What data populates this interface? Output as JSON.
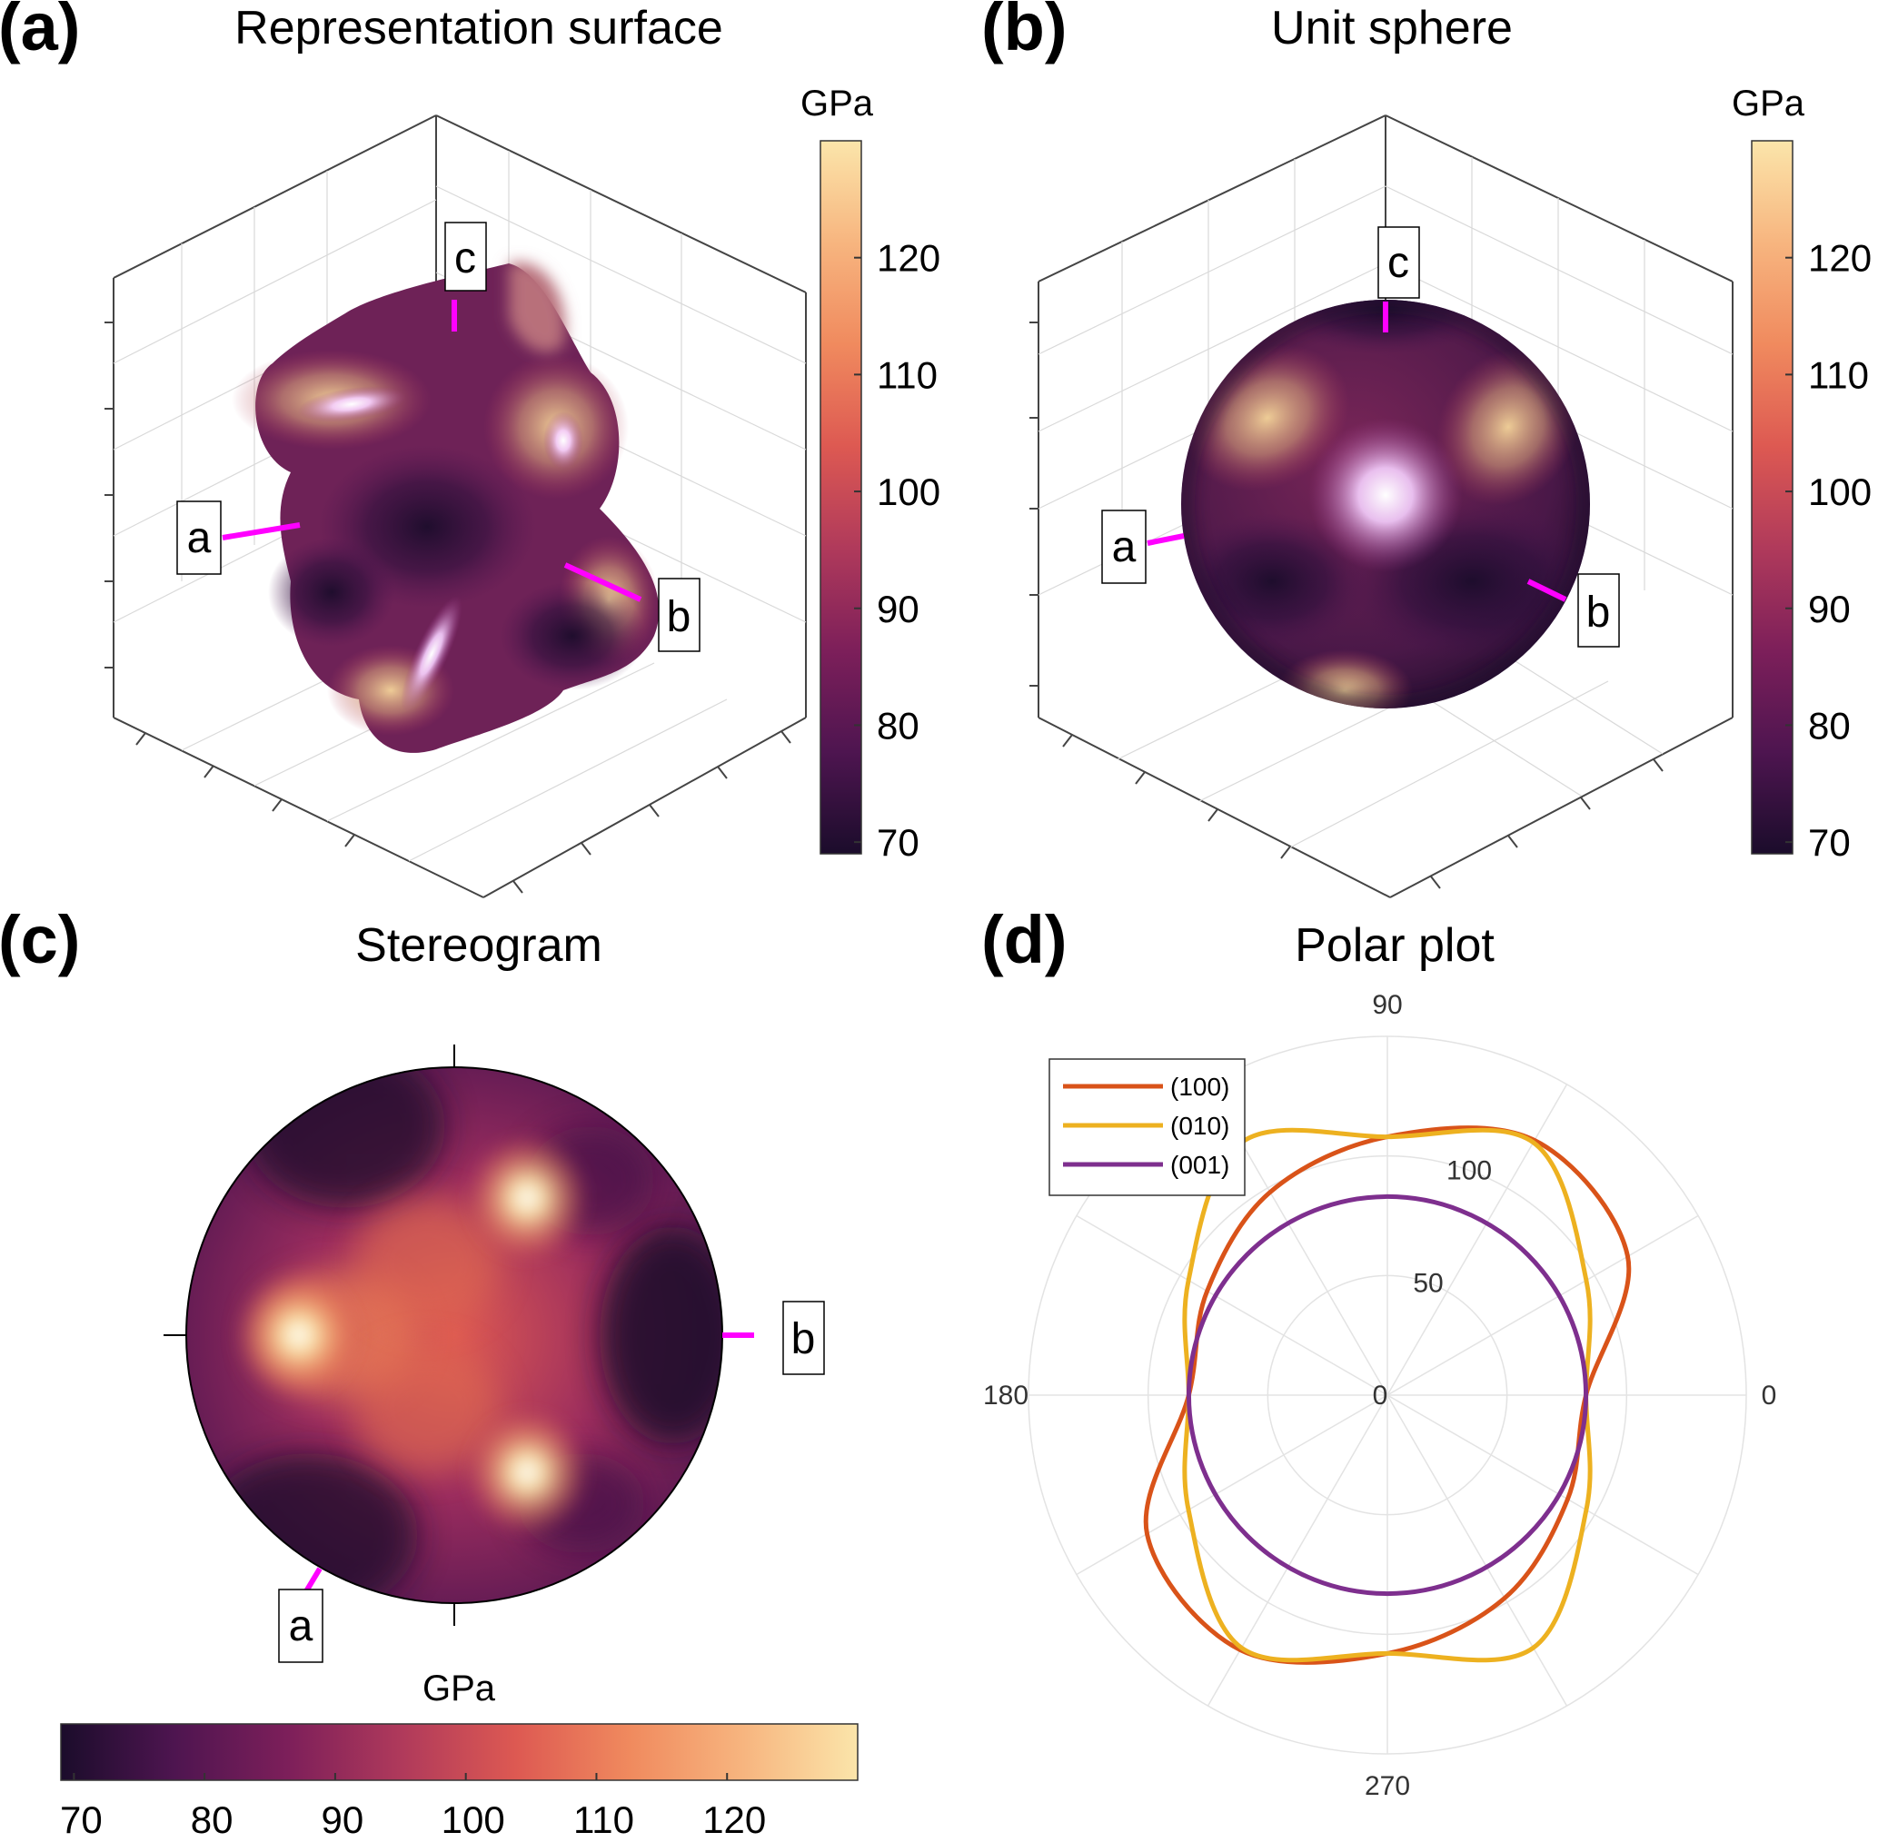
{
  "figure": {
    "panels": [
      {
        "label": "(a)",
        "title": "Representation surface"
      },
      {
        "label": "(b)",
        "title": "Unit sphere"
      },
      {
        "label": "(c)",
        "title": "Stereogram"
      },
      {
        "label": "(d)",
        "title": "Polar plot"
      }
    ],
    "axis_labels": {
      "a": "a",
      "b": "b",
      "c": "c"
    },
    "colormap": [
      "#1b0c2b",
      "#4e1550",
      "#7d1f5a",
      "#b03a5b",
      "#dd5952",
      "#f08a5e",
      "#f7b57f",
      "#fbe5aa"
    ],
    "accent_color": "#ff00ff"
  },
  "chart_data": [
    {
      "type": "surface3d",
      "panel": "(a)",
      "title": "Representation surface",
      "colorbar": {
        "label": "GPa",
        "range": [
          69,
          130
        ],
        "ticks": [
          70,
          80,
          90,
          100,
          110,
          120
        ]
      },
      "axes_labels": [
        "a",
        "b",
        "c"
      ]
    },
    {
      "type": "surface3d",
      "panel": "(b)",
      "title": "Unit sphere",
      "colorbar": {
        "label": "GPa",
        "range": [
          69,
          130
        ],
        "ticks": [
          70,
          80,
          90,
          100,
          110,
          120
        ]
      },
      "axes_labels": [
        "a",
        "b",
        "c"
      ]
    },
    {
      "type": "heatmap",
      "panel": "(c)",
      "title": "Stereogram",
      "colorbar": {
        "label": "GPa",
        "range": [
          69,
          130
        ],
        "ticks": [
          70,
          80,
          90,
          100,
          110,
          120
        ],
        "orientation": "horizontal"
      },
      "axes_labels": [
        "a",
        "b"
      ],
      "peaks": [
        {
          "angle_deg": 180,
          "r": 0.58,
          "value": 128
        },
        {
          "angle_deg": 62,
          "r": 0.58,
          "value": 126
        },
        {
          "angle_deg": -62,
          "r": 0.58,
          "value": 127
        }
      ]
    },
    {
      "type": "line",
      "subtype": "polar",
      "panel": "(d)",
      "title": "Polar plot",
      "r_ticks": [
        0,
        50,
        100
      ],
      "r_max": 150,
      "angle_tick_labels": [
        "0",
        "90",
        "180",
        "270"
      ],
      "legend_position": "top-left",
      "series": [
        {
          "name": "(100)",
          "color": "#d95319",
          "angles_deg": [
            0,
            30,
            60,
            90,
            120,
            150,
            180,
            210,
            240,
            270,
            300,
            330
          ],
          "r": [
            83,
            116,
            123,
            108,
            98,
            87,
            83,
            116,
            123,
            108,
            98,
            87
          ]
        },
        {
          "name": "(010)",
          "color": "#edb120",
          "angles_deg": [
            0,
            30,
            60,
            90,
            120,
            150,
            180,
            210,
            240,
            270,
            300,
            330
          ],
          "r": [
            83,
            96,
            122,
            108,
            122,
            96,
            83,
            96,
            122,
            108,
            122,
            96
          ]
        },
        {
          "name": "(001)",
          "color": "#7e2f8e",
          "angles_deg": [
            0,
            90,
            180,
            270
          ],
          "r": [
            83,
            83,
            83,
            83
          ]
        }
      ]
    }
  ]
}
